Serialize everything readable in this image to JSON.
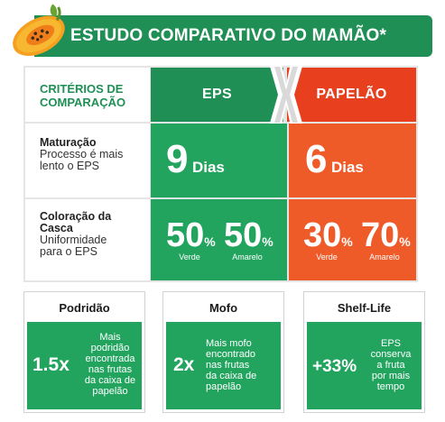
{
  "header": {
    "title": "ESTUDO COMPARATIVO DO MAMÃO*",
    "icon": "papaya-icon"
  },
  "table": {
    "criteria_label_line1": "CRITÉRIOS DE",
    "criteria_label_line2": "COMPARAÇÃO",
    "col_eps": "EPS",
    "col_papelao": "PAPELÃO",
    "versus_icon": "x-icon",
    "rows": [
      {
        "title": "Maturação",
        "sub_line1": "Processo é mais",
        "sub_line2": "lento o EPS",
        "eps_value": "9",
        "eps_unit": "Dias",
        "papelao_value": "6",
        "papelao_unit": "Dias"
      },
      {
        "title_line1": "Coloração da",
        "title_line2": "Casca",
        "sub_line1": "Uniformidade",
        "sub_line2": "para o EPS",
        "eps_verde": "50",
        "eps_amarelo": "50",
        "papelao_verde": "30",
        "papelao_amarelo": "70",
        "pct_sign": "%",
        "label_verde": "Verde",
        "label_amarelo": "Amarelo"
      }
    ]
  },
  "cards": [
    {
      "title": "Podridão",
      "big": "1.5x",
      "lines": [
        "Mais",
        "podridão",
        "encontrada",
        "nas frutas",
        "da caixa de",
        "papelão"
      ]
    },
    {
      "title": "Mofo",
      "big": "2x",
      "lines": [
        "Mais mofo",
        "encontrado",
        "nas frutas",
        "da caixa de",
        "papelão"
      ]
    },
    {
      "title": "Shelf-Life",
      "big": "+33%",
      "lines": [
        "EPS",
        "conserva",
        "a fruta",
        "por mais",
        "tempo"
      ]
    }
  ],
  "colors": {
    "brand_green": "#1f8f55",
    "body_green": "#22a35e",
    "head_red": "#e8401f",
    "body_red": "#ef5a29"
  }
}
